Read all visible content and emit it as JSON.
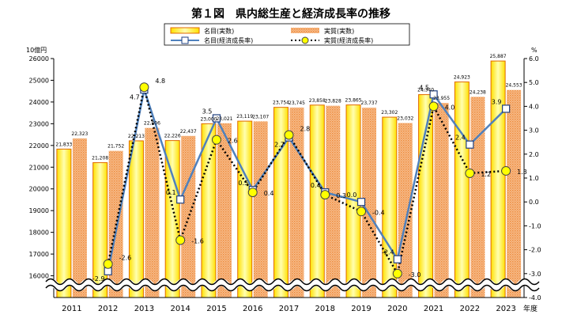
{
  "chart_data": {
    "type": "bar",
    "title": "第１図　県内総生産と経済成長率の推移",
    "categories": [
      "2011",
      "2012",
      "2013",
      "2014",
      "2015",
      "2016",
      "2017",
      "2018",
      "2019",
      "2020",
      "2021",
      "2022",
      "2023"
    ],
    "x_unit_label": "年度",
    "left_axis": {
      "unit_label": "10億円",
      "min": 15000,
      "max": 26000,
      "ticks": [
        16000,
        17000,
        18000,
        19000,
        20000,
        21000,
        22000,
        23000,
        24000,
        25000,
        26000
      ]
    },
    "right_axis": {
      "unit_label": "%",
      "min": -4.0,
      "max": 6.0,
      "ticks": [
        "-4.0",
        "-3.0",
        "-2.0",
        "-1.0",
        "0.0",
        "1.0",
        "2.0",
        "3.0",
        "4.0",
        "5.0",
        "6.0"
      ]
    },
    "axis_break": true,
    "legend": {
      "placement": "top",
      "items": [
        "名目(実数)",
        "実質(実数)",
        "名目(経済成長率)",
        "実質(経済成長率)"
      ]
    },
    "series": [
      {
        "name": "名目(実数)",
        "kind": "bar",
        "axis": "left",
        "color": "#FFE000",
        "values": [
          21833,
          21208,
          22213,
          22226,
          23000,
          23119,
          23754,
          23858,
          23865,
          23302,
          24340,
          24923,
          25887
        ],
        "labels": [
          "21,833",
          "21,208",
          "22,213",
          "22,226",
          "23,000",
          "23,119",
          "23,754",
          "23,858",
          "23,865",
          "23,302",
          "24,340",
          "24,923",
          "25,887"
        ]
      },
      {
        "name": "実質(実数)",
        "kind": "bar",
        "axis": "left",
        "color": "#F4A460",
        "values": [
          22323,
          21752,
          22806,
          22437,
          23021,
          23107,
          23745,
          23828,
          23737,
          23032,
          23955,
          24238,
          24553
        ],
        "labels": [
          "22,323",
          "21,752",
          "22,806",
          "22,437",
          "23,021",
          "23,107",
          "23,745",
          "23,828",
          "23,737",
          "23,032",
          "23,955",
          "24,238",
          "24,553"
        ]
      },
      {
        "name": "名目(経済成長率)",
        "kind": "line",
        "axis": "right",
        "color": "#4F81BD",
        "values": [
          null,
          -2.9,
          4.7,
          0.1,
          3.5,
          0.5,
          2.7,
          0.4,
          0.0,
          -2.4,
          4.5,
          2.4,
          3.9
        ],
        "labels": [
          "",
          "-2.9",
          "4.7",
          "0.1",
          "3.5",
          "0.5",
          "2.7",
          "0.4",
          "0.0",
          "-2.4",
          "4.5",
          "2.4",
          "3.9"
        ]
      },
      {
        "name": "実質(経済成長率)",
        "kind": "line",
        "axis": "right",
        "color": "#FFFF00",
        "values": [
          null,
          -2.6,
          4.8,
          -1.6,
          2.6,
          0.4,
          2.8,
          0.3,
          -0.4,
          -3.0,
          4.0,
          1.2,
          1.3
        ],
        "labels": [
          "",
          "-2.6",
          "4.8",
          "-1.6",
          "2.6",
          "0.4",
          "2.8",
          "0.3",
          "-0.4",
          "-3.0",
          "4.0",
          "1.2",
          "1.3"
        ]
      }
    ]
  }
}
